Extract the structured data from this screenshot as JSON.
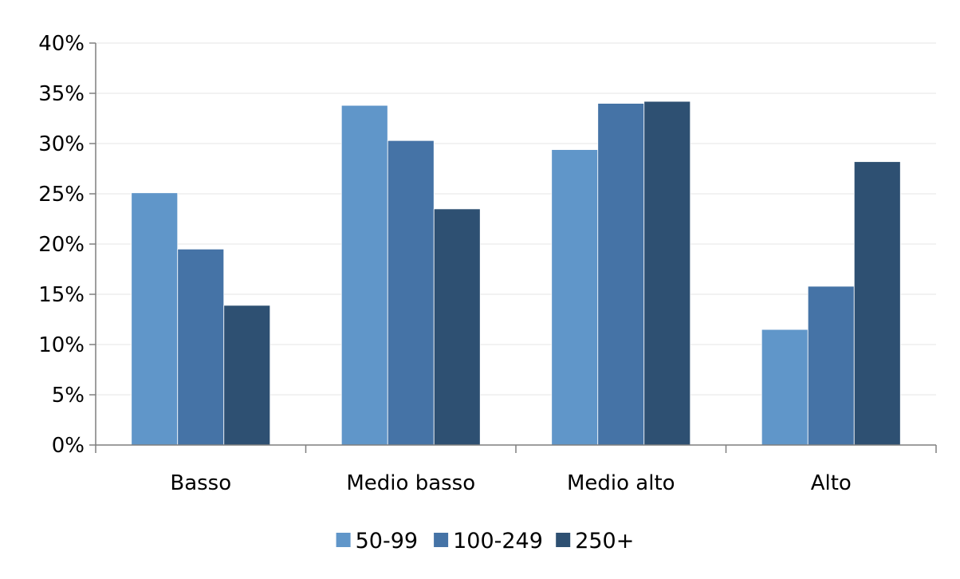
{
  "chart_data": {
    "type": "bar",
    "categories": [
      "Basso",
      "Medio basso",
      "Medio alto",
      "Alto"
    ],
    "series": [
      {
        "name": "50-99",
        "color": "#6096c9",
        "values": [
          25.1,
          33.8,
          29.4,
          11.5
        ]
      },
      {
        "name": "100-249",
        "color": "#4573a6",
        "values": [
          19.5,
          30.3,
          34.0,
          15.8
        ]
      },
      {
        "name": "250+",
        "color": "#2e5072",
        "values": [
          13.9,
          23.5,
          34.2,
          28.2
        ]
      }
    ],
    "y_ticks": [
      "0%",
      "5%",
      "10%",
      "15%",
      "20%",
      "25%",
      "30%",
      "35%",
      "40%"
    ],
    "ylim": [
      0,
      40
    ],
    "y_step": 5,
    "grid": true,
    "legend_position": "bottom"
  }
}
